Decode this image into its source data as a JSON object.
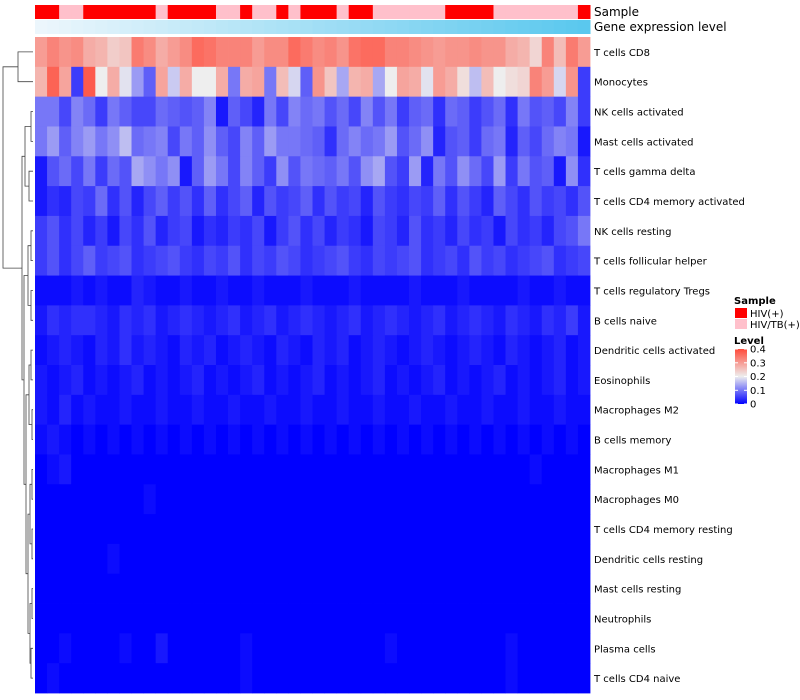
{
  "chart_data": {
    "type": "heatmap",
    "annotation_rows": [
      {
        "name": "sample",
        "label": "Sample"
      },
      {
        "name": "gene-expression",
        "label": "Gene expression level"
      }
    ],
    "sample_groups": [
      "HIV(+)",
      "HIV(+)",
      "HIV/TB(+)",
      "HIV/TB(+)",
      "HIV(+)",
      "HIV(+)",
      "HIV(+)",
      "HIV(+)",
      "HIV(+)",
      "HIV(+)",
      "HIV/TB(+)",
      "HIV(+)",
      "HIV(+)",
      "HIV(+)",
      "HIV(+)",
      "HIV/TB(+)",
      "HIV/TB(+)",
      "HIV(+)",
      "HIV/TB(+)",
      "HIV/TB(+)",
      "HIV(+)",
      "HIV/TB(+)",
      "HIV(+)",
      "HIV(+)",
      "HIV(+)",
      "HIV/TB(+)",
      "HIV(+)",
      "HIV(+)",
      "HIV/TB(+)",
      "HIV/TB(+)",
      "HIV/TB(+)",
      "HIV/TB(+)",
      "HIV/TB(+)",
      "HIV/TB(+)",
      "HIV(+)",
      "HIV(+)",
      "HIV(+)",
      "HIV(+)",
      "HIV/TB(+)",
      "HIV/TB(+)",
      "HIV/TB(+)",
      "HIV/TB(+)",
      "HIV/TB(+)",
      "HIV/TB(+)",
      "HIV/TB(+)",
      "HIV(+)"
    ],
    "rows": [
      "T cells CD8",
      "Monocytes",
      "NK cells activated",
      "Mast cells activated",
      "T cells gamma delta",
      "T cells CD4 memory activated",
      "NK cells resting",
      "T cells follicular helper",
      "T cells regulatory  Tregs",
      "B cells naive",
      "Dendritic cells activated",
      "Eosinophils",
      "Macrophages M2",
      "B cells memory",
      "Macrophages M1",
      "Macrophages M0",
      "T cells CD4 memory resting",
      "Dendritic cells resting",
      "Mast cells resting",
      "Neutrophils",
      "Plasma cells",
      "T cells CD4 naive"
    ],
    "n_columns": 46,
    "values": [
      [
        0.3,
        0.33,
        0.31,
        0.32,
        0.28,
        0.27,
        0.24,
        0.25,
        0.34,
        0.32,
        0.28,
        0.3,
        0.32,
        0.36,
        0.35,
        0.33,
        0.33,
        0.33,
        0.3,
        0.32,
        0.32,
        0.36,
        0.34,
        0.32,
        0.33,
        0.31,
        0.35,
        0.36,
        0.36,
        0.33,
        0.33,
        0.32,
        0.31,
        0.3,
        0.31,
        0.31,
        0.32,
        0.31,
        0.31,
        0.28,
        0.27,
        0.23,
        0.33,
        0.26,
        0.34,
        0.3
      ],
      [
        0.27,
        0.37,
        0.29,
        0.05,
        0.38,
        0.2,
        0.28,
        0.19,
        0.13,
        0.08,
        0.29,
        0.17,
        0.28,
        0.2,
        0.2,
        0.28,
        0.1,
        0.28,
        0.29,
        0.1,
        0.26,
        0.18,
        0.08,
        0.31,
        0.25,
        0.14,
        0.27,
        0.28,
        0.14,
        0.2,
        0.29,
        0.28,
        0.19,
        0.3,
        0.28,
        0.22,
        0.16,
        0.26,
        0.2,
        0.22,
        0.23,
        0.33,
        0.3,
        0.18,
        0.31,
        0.05
      ],
      [
        0.1,
        0.1,
        0.06,
        0.11,
        0.09,
        0.05,
        0.1,
        0.08,
        0.06,
        0.06,
        0.09,
        0.08,
        0.07,
        0.08,
        0.11,
        0.02,
        0.08,
        0.06,
        0.03,
        0.1,
        0.06,
        0.11,
        0.09,
        0.1,
        0.07,
        0.09,
        0.06,
        0.11,
        0.07,
        0.1,
        0.05,
        0.08,
        0.09,
        0.04,
        0.09,
        0.08,
        0.05,
        0.07,
        0.09,
        0.04,
        0.1,
        0.07,
        0.08,
        0.06,
        0.11,
        0.05
      ],
      [
        0.1,
        0.13,
        0.08,
        0.11,
        0.13,
        0.1,
        0.12,
        0.16,
        0.09,
        0.1,
        0.11,
        0.06,
        0.1,
        0.08,
        0.12,
        0.08,
        0.06,
        0.11,
        0.08,
        0.13,
        0.1,
        0.1,
        0.09,
        0.08,
        0.04,
        0.09,
        0.11,
        0.09,
        0.1,
        0.13,
        0.07,
        0.09,
        0.12,
        0.03,
        0.07,
        0.08,
        0.05,
        0.09,
        0.1,
        0.03,
        0.08,
        0.06,
        0.09,
        0.11,
        0.1,
        0.02
      ],
      [
        0.02,
        0.07,
        0.09,
        0.06,
        0.1,
        0.05,
        0.09,
        0.07,
        0.14,
        0.12,
        0.1,
        0.12,
        0.02,
        0.08,
        0.13,
        0.1,
        0.06,
        0.11,
        0.08,
        0.05,
        0.12,
        0.07,
        0.1,
        0.09,
        0.08,
        0.1,
        0.07,
        0.12,
        0.14,
        0.07,
        0.05,
        0.13,
        0.03,
        0.1,
        0.07,
        0.12,
        0.09,
        0.06,
        0.13,
        0.05,
        0.1,
        0.07,
        0.08,
        0.02,
        0.12,
        0.04
      ],
      [
        0.02,
        0.04,
        0.03,
        0.06,
        0.05,
        0.09,
        0.04,
        0.07,
        0.03,
        0.06,
        0.08,
        0.05,
        0.07,
        0.04,
        0.08,
        0.04,
        0.06,
        0.08,
        0.03,
        0.07,
        0.05,
        0.06,
        0.08,
        0.04,
        0.07,
        0.05,
        0.06,
        0.03,
        0.07,
        0.05,
        0.04,
        0.06,
        0.05,
        0.08,
        0.04,
        0.07,
        0.05,
        0.03,
        0.08,
        0.06,
        0.04,
        0.07,
        0.05,
        0.06,
        0.04,
        0.07
      ],
      [
        0.05,
        0.07,
        0.04,
        0.06,
        0.03,
        0.05,
        0.02,
        0.06,
        0.04,
        0.07,
        0.03,
        0.05,
        0.06,
        0.02,
        0.04,
        0.03,
        0.05,
        0.04,
        0.06,
        0.02,
        0.05,
        0.07,
        0.04,
        0.06,
        0.03,
        0.05,
        0.04,
        0.02,
        0.06,
        0.05,
        0.03,
        0.07,
        0.04,
        0.05,
        0.03,
        0.06,
        0.04,
        0.05,
        0.02,
        0.06,
        0.04,
        0.05,
        0.03,
        0.06,
        0.07,
        0.1
      ],
      [
        0.05,
        0.07,
        0.04,
        0.06,
        0.08,
        0.05,
        0.06,
        0.07,
        0.04,
        0.05,
        0.06,
        0.07,
        0.05,
        0.04,
        0.06,
        0.05,
        0.07,
        0.04,
        0.06,
        0.05,
        0.07,
        0.06,
        0.04,
        0.05,
        0.06,
        0.07,
        0.05,
        0.04,
        0.06,
        0.05,
        0.06,
        0.07,
        0.04,
        0.05,
        0.06,
        0.04,
        0.07,
        0.05,
        0.06,
        0.04,
        0.05,
        0.06,
        0.07,
        0.04,
        0.05,
        0.06
      ],
      [
        0.01,
        0.01,
        0.01,
        0.02,
        0.01,
        0.02,
        0.01,
        0.01,
        0.03,
        0.02,
        0.01,
        0.01,
        0.02,
        0.01,
        0.01,
        0.02,
        0.01,
        0.01,
        0.02,
        0.01,
        0.01,
        0.01,
        0.02,
        0.01,
        0.01,
        0.01,
        0.02,
        0.01,
        0.01,
        0.01,
        0.01,
        0.02,
        0.01,
        0.01,
        0.01,
        0.02,
        0.01,
        0.01,
        0.01,
        0.01,
        0.02,
        0.01,
        0.01,
        0.02,
        0.01,
        0.01
      ],
      [
        0.02,
        0.04,
        0.03,
        0.04,
        0.04,
        0.03,
        0.02,
        0.04,
        0.03,
        0.04,
        0.02,
        0.03,
        0.04,
        0.03,
        0.02,
        0.03,
        0.04,
        0.02,
        0.03,
        0.04,
        0.02,
        0.03,
        0.04,
        0.03,
        0.02,
        0.03,
        0.04,
        0.02,
        0.03,
        0.04,
        0.03,
        0.02,
        0.03,
        0.04,
        0.02,
        0.03,
        0.04,
        0.03,
        0.02,
        0.04,
        0.03,
        0.02,
        0.04,
        0.03,
        0.05,
        0.02
      ],
      [
        0.01,
        0.02,
        0.03,
        0.02,
        0.01,
        0.03,
        0.02,
        0.04,
        0.02,
        0.03,
        0.02,
        0.01,
        0.03,
        0.02,
        0.03,
        0.01,
        0.02,
        0.03,
        0.02,
        0.01,
        0.03,
        0.02,
        0.01,
        0.03,
        0.02,
        0.03,
        0.01,
        0.02,
        0.03,
        0.02,
        0.01,
        0.02,
        0.03,
        0.02,
        0.01,
        0.02,
        0.03,
        0.02,
        0.01,
        0.03,
        0.02,
        0.01,
        0.02,
        0.03,
        0.01,
        0.02
      ],
      [
        0.02,
        0.01,
        0.02,
        0.03,
        0.01,
        0.02,
        0.01,
        0.02,
        0.03,
        0.01,
        0.02,
        0.01,
        0.02,
        0.03,
        0.01,
        0.02,
        0.01,
        0.02,
        0.03,
        0.01,
        0.02,
        0.01,
        0.02,
        0.03,
        0.01,
        0.02,
        0.01,
        0.02,
        0.03,
        0.01,
        0.02,
        0.01,
        0.02,
        0.03,
        0.01,
        0.02,
        0.01,
        0.02,
        0.03,
        0.01,
        0.02,
        0.01,
        0.02,
        0.03,
        0.01,
        0.02
      ],
      [
        0.02,
        0.01,
        0.03,
        0.01,
        0.02,
        0.01,
        0.01,
        0.02,
        0.01,
        0.01,
        0.02,
        0.01,
        0.01,
        0.02,
        0.01,
        0.01,
        0.02,
        0.01,
        0.01,
        0.02,
        0.01,
        0.01,
        0.02,
        0.01,
        0.01,
        0.02,
        0.01,
        0.01,
        0.02,
        0.01,
        0.01,
        0.02,
        0.01,
        0.01,
        0.02,
        0.01,
        0.01,
        0.02,
        0.01,
        0.01,
        0.02,
        0.01,
        0.01,
        0.02,
        0.01,
        0.01
      ],
      [
        0.01,
        0.02,
        0.01,
        0.0,
        0.01,
        0.0,
        0.01,
        0.0,
        0.01,
        0.0,
        0.01,
        0.0,
        0.01,
        0.0,
        0.01,
        0.0,
        0.01,
        0.0,
        0.01,
        0.0,
        0.01,
        0.0,
        0.01,
        0.0,
        0.01,
        0.0,
        0.01,
        0.0,
        0.01,
        0.0,
        0.01,
        0.0,
        0.01,
        0.0,
        0.01,
        0.0,
        0.01,
        0.0,
        0.01,
        0.0,
        0.01,
        0.0,
        0.01,
        0.0,
        0.01,
        0.0
      ],
      [
        0.0,
        0.01,
        0.02,
        0.0,
        0.0,
        0.0,
        0.0,
        0.0,
        0.0,
        0.0,
        0.0,
        0.0,
        0.0,
        0.0,
        0.0,
        0.0,
        0.0,
        0.0,
        0.0,
        0.0,
        0.0,
        0.0,
        0.0,
        0.0,
        0.0,
        0.0,
        0.0,
        0.0,
        0.0,
        0.0,
        0.0,
        0.0,
        0.0,
        0.0,
        0.0,
        0.0,
        0.0,
        0.0,
        0.0,
        0.0,
        0.0,
        0.01,
        0.0,
        0.0,
        0.0,
        0.0
      ],
      [
        0.0,
        0.0,
        0.0,
        0.0,
        0.0,
        0.0,
        0.0,
        0.0,
        0.0,
        0.01,
        0.0,
        0.0,
        0.0,
        0.0,
        0.0,
        0.0,
        0.0,
        0.0,
        0.0,
        0.0,
        0.0,
        0.0,
        0.0,
        0.0,
        0.0,
        0.0,
        0.0,
        0.0,
        0.0,
        0.0,
        0.0,
        0.0,
        0.0,
        0.0,
        0.0,
        0.0,
        0.0,
        0.0,
        0.0,
        0.0,
        0.0,
        0.0,
        0.0,
        0.0,
        0.0,
        0.0
      ],
      [
        0.0,
        0.0,
        0.0,
        0.0,
        0.0,
        0.0,
        0.0,
        0.0,
        0.0,
        0.0,
        0.0,
        0.0,
        0.0,
        0.0,
        0.0,
        0.0,
        0.0,
        0.0,
        0.0,
        0.0,
        0.0,
        0.0,
        0.0,
        0.0,
        0.0,
        0.0,
        0.0,
        0.0,
        0.0,
        0.0,
        0.0,
        0.0,
        0.0,
        0.0,
        0.0,
        0.0,
        0.0,
        0.0,
        0.0,
        0.0,
        0.0,
        0.0,
        0.0,
        0.0,
        0.0,
        0.0
      ],
      [
        0.0,
        0.0,
        0.0,
        0.0,
        0.0,
        0.0,
        0.01,
        0.0,
        0.0,
        0.0,
        0.0,
        0.0,
        0.0,
        0.0,
        0.0,
        0.0,
        0.0,
        0.0,
        0.0,
        0.0,
        0.0,
        0.0,
        0.0,
        0.0,
        0.0,
        0.0,
        0.0,
        0.0,
        0.0,
        0.0,
        0.0,
        0.0,
        0.0,
        0.0,
        0.0,
        0.0,
        0.0,
        0.0,
        0.0,
        0.0,
        0.0,
        0.0,
        0.0,
        0.0,
        0.0,
        0.0
      ],
      [
        0.0,
        0.0,
        0.0,
        0.0,
        0.0,
        0.0,
        0.0,
        0.0,
        0.0,
        0.0,
        0.0,
        0.0,
        0.0,
        0.0,
        0.0,
        0.0,
        0.0,
        0.0,
        0.0,
        0.0,
        0.0,
        0.0,
        0.0,
        0.0,
        0.0,
        0.0,
        0.0,
        0.0,
        0.0,
        0.0,
        0.0,
        0.0,
        0.0,
        0.0,
        0.0,
        0.0,
        0.0,
        0.0,
        0.0,
        0.0,
        0.0,
        0.0,
        0.0,
        0.0,
        0.0,
        0.0
      ],
      [
        0.0,
        0.0,
        0.0,
        0.0,
        0.0,
        0.0,
        0.0,
        0.0,
        0.0,
        0.0,
        0.0,
        0.0,
        0.0,
        0.0,
        0.0,
        0.0,
        0.0,
        0.0,
        0.0,
        0.0,
        0.0,
        0.0,
        0.0,
        0.0,
        0.0,
        0.0,
        0.0,
        0.0,
        0.0,
        0.0,
        0.0,
        0.0,
        0.0,
        0.0,
        0.0,
        0.0,
        0.0,
        0.0,
        0.0,
        0.0,
        0.0,
        0.0,
        0.0,
        0.0,
        0.0,
        0.0
      ],
      [
        0.0,
        0.0,
        0.01,
        0.0,
        0.0,
        0.0,
        0.0,
        0.01,
        0.0,
        0.0,
        0.02,
        0.0,
        0.0,
        0.0,
        0.0,
        0.0,
        0.0,
        0.01,
        0.0,
        0.0,
        0.0,
        0.0,
        0.0,
        0.0,
        0.0,
        0.0,
        0.0,
        0.0,
        0.0,
        0.01,
        0.0,
        0.0,
        0.0,
        0.0,
        0.0,
        0.0,
        0.0,
        0.0,
        0.0,
        0.01,
        0.0,
        0.0,
        0.0,
        0.0,
        0.0,
        0.0
      ],
      [
        0.0,
        0.01,
        0.0,
        0.0,
        0.0,
        0.0,
        0.0,
        0.0,
        0.0,
        0.0,
        0.0,
        0.0,
        0.0,
        0.0,
        0.0,
        0.0,
        0.0,
        0.01,
        0.0,
        0.0,
        0.0,
        0.0,
        0.0,
        0.0,
        0.0,
        0.0,
        0.0,
        0.0,
        0.0,
        0.0,
        0.0,
        0.0,
        0.0,
        0.0,
        0.0,
        0.0,
        0.0,
        0.0,
        0.0,
        0.01,
        0.0,
        0.0,
        0.0,
        0.0,
        0.0,
        0.0
      ]
    ],
    "legend": {
      "sample_title": "Sample",
      "sample_entries": [
        {
          "label": "HIV(+)",
          "color": "#ff0000"
        },
        {
          "label": "HIV/TB(+)",
          "color": "#ffc0cb"
        }
      ],
      "level_title": "Level",
      "level_ticks": [
        "0.4",
        "0.3",
        "0.2",
        "0.1",
        "0"
      ],
      "level_range": [
        0,
        0.4
      ],
      "colors": {
        "low": "#0000ff",
        "mid": "#eeeeee",
        "high": "#ff4a3a"
      }
    }
  }
}
